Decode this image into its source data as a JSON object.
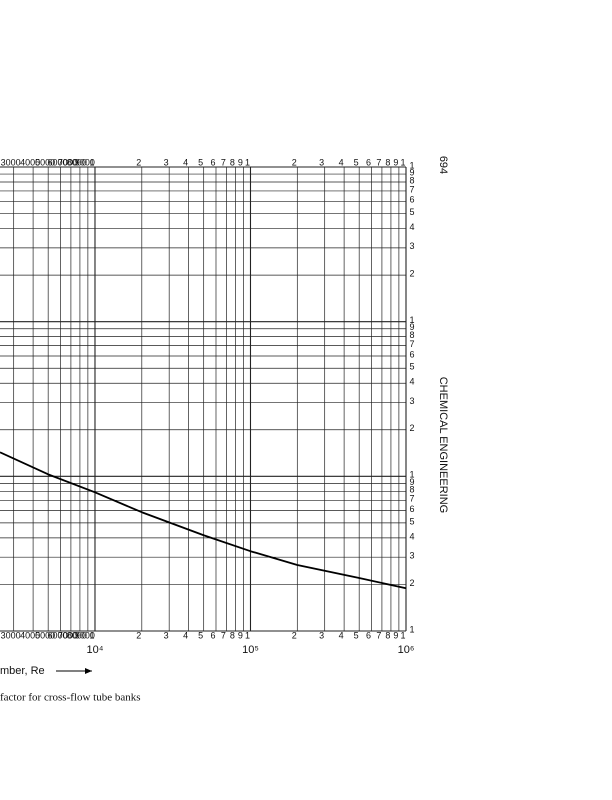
{
  "page_number": "694",
  "running_head": "CHEMICAL ENGINEERING",
  "chart_data": {
    "type": "line",
    "log_x": true,
    "log_y": true,
    "grid": true,
    "xlabel": "mber, Re",
    "caption": "factor for cross-flow tube banks",
    "color": "#000000",
    "x": [
      2450,
      5000,
      10000,
      20000,
      50000,
      100000,
      200000,
      500000,
      1000000
    ],
    "values": [
      14.3,
      10.3,
      7.88,
      5.86,
      4.16,
      3.28,
      2.67,
      2.2,
      1.89
    ],
    "xlim": [
      2450,
      1000000
    ],
    "xticks": [
      3000,
      4000,
      5000,
      6000,
      7000,
      8000,
      9000,
      {
        "value": 10000,
        "label": "1"
      },
      {
        "value": 20000,
        "label": "2"
      },
      {
        "value": 30000,
        "label": "3"
      },
      {
        "value": 40000,
        "label": "4"
      },
      {
        "value": 50000,
        "label": "5"
      },
      {
        "value": 60000,
        "label": "6"
      },
      {
        "value": 70000,
        "label": "7"
      },
      {
        "value": 80000,
        "label": "8"
      },
      {
        "value": 90000,
        "label": "9"
      },
      {
        "value": 100000,
        "label": "1"
      },
      {
        "value": 200000,
        "label": "2"
      },
      {
        "value": 300000,
        "label": "3"
      },
      {
        "value": 400000,
        "label": "4"
      },
      {
        "value": 500000,
        "label": "5"
      },
      {
        "value": 600000,
        "label": "6"
      },
      {
        "value": 700000,
        "label": "7"
      },
      {
        "value": 800000,
        "label": "8"
      },
      {
        "value": 900000,
        "label": "9"
      },
      {
        "value": 1000000,
        "label": "1"
      }
    ],
    "xmajor_labels": [
      {
        "value": 10000,
        "label": "10⁴"
      },
      {
        "value": 100000,
        "label": "10⁵"
      },
      {
        "value": 1000000,
        "label": "10⁶"
      }
    ],
    "ylim": [
      1,
      1000
    ],
    "yticks": [
      1,
      2,
      3,
      4,
      5,
      6,
      7,
      8,
      9,
      {
        "value": 10,
        "label": "1"
      },
      {
        "value": 20,
        "label": "2"
      },
      {
        "value": 30,
        "label": "3"
      },
      {
        "value": 40,
        "label": "4"
      },
      {
        "value": 50,
        "label": "5"
      },
      {
        "value": 60,
        "label": "6"
      },
      {
        "value": 70,
        "label": "7"
      },
      {
        "value": 80,
        "label": "8"
      },
      {
        "value": 90,
        "label": "9"
      },
      {
        "value": 100,
        "label": "1"
      },
      {
        "value": 200,
        "label": "2"
      },
      {
        "value": 300,
        "label": "3"
      },
      {
        "value": 400,
        "label": "4"
      },
      {
        "value": 500,
        "label": "5"
      },
      {
        "value": 600,
        "label": "6"
      },
      {
        "value": 700,
        "label": "7"
      },
      {
        "value": 800,
        "label": "8"
      },
      {
        "value": 900,
        "label": "9"
      },
      {
        "value": 1000,
        "label": "1"
      }
    ]
  }
}
